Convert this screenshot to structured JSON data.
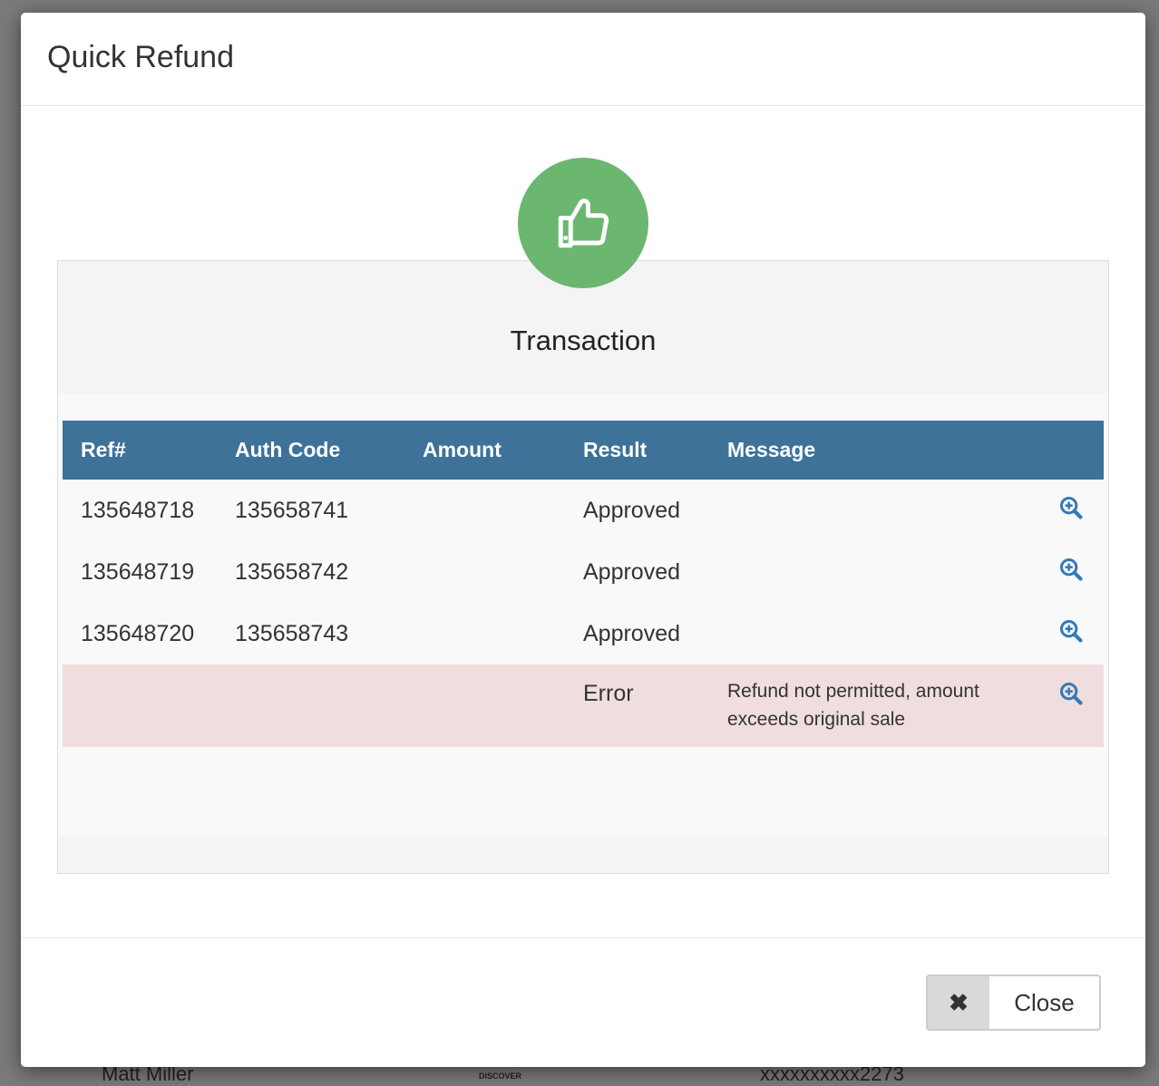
{
  "background": {
    "customer": "Matt Miller",
    "card_brand": "DISCOVER",
    "card_number": "xxxxxxxxxx2273"
  },
  "modal": {
    "title": "Quick Refund",
    "panel_title": "Transaction",
    "status_icon": "thumbs-up-icon",
    "status_color": "#6bb76f",
    "table": {
      "headers": [
        "Ref#",
        "Auth Code",
        "Amount",
        "Result",
        "Message"
      ],
      "rows": [
        {
          "ref": "135648718",
          "auth": "135658741",
          "amount": "",
          "result": "Approved",
          "message": ""
        },
        {
          "ref": "135648719",
          "auth": "135658742",
          "amount": "",
          "result": "Approved",
          "message": ""
        },
        {
          "ref": "135648720",
          "auth": "135658743",
          "amount": "",
          "result": "Approved",
          "message": ""
        },
        {
          "ref": "",
          "auth": "",
          "amount": "",
          "result": "Error",
          "message": "Refund not permitted, amount exceeds original sale"
        }
      ]
    },
    "close_label": "Close"
  },
  "colors": {
    "header": "#3e7298",
    "error_row": "#f0dede",
    "link_icon": "#337ab7"
  }
}
